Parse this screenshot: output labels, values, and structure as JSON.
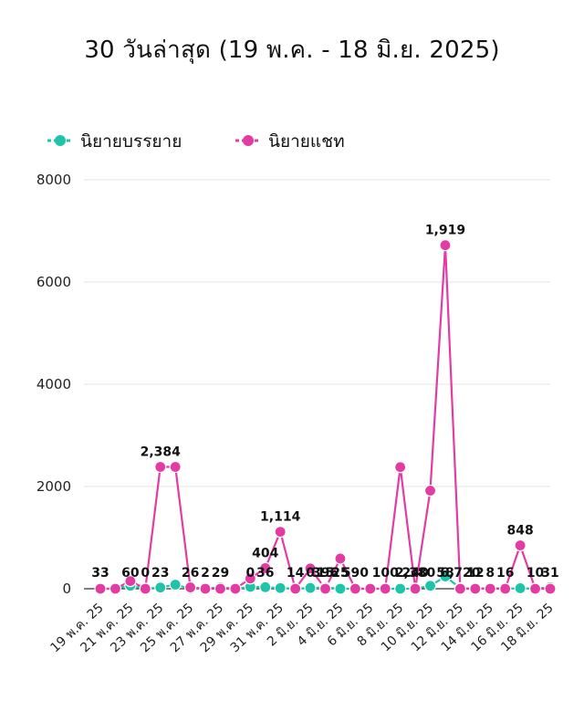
{
  "chart_data": {
    "type": "line",
    "title": "30 วันล่าสุด (19 พ.ค. - 18 มิ.ย. 2025)",
    "ylim": [
      0,
      8000
    ],
    "yticks": [
      0,
      2000,
      4000,
      6000,
      8000
    ],
    "grid": true,
    "legend_position": "top-left",
    "x": [
      "19 พ.ค. 25",
      "20 พ.ค. 25",
      "21 พ.ค. 25",
      "22 พ.ค. 25",
      "23 พ.ค. 25",
      "24 พ.ค. 25",
      "25 พ.ค. 25",
      "26 พ.ค. 25",
      "27 พ.ค. 25",
      "28 พ.ค. 25",
      "29 พ.ค. 25",
      "30 พ.ค. 25",
      "31 พ.ค. 25",
      "1 มิ.ย. 25",
      "2 มิ.ย. 25",
      "3 มิ.ย. 25",
      "4 มิ.ย. 25",
      "5 มิ.ย. 25",
      "6 มิ.ย. 25",
      "7 มิ.ย. 25",
      "8 มิ.ย. 25",
      "9 มิ.ย. 25",
      "10 มิ.ย. 25",
      "11 มิ.ย. 25",
      "12 มิ.ย. 25",
      "13 มิ.ย. 25",
      "14 มิ.ย. 25",
      "15 มิ.ย. 25",
      "16 มิ.ย. 25",
      "17 มิ.ย. 25",
      "18 มิ.ย. 25"
    ],
    "x_tick_labels": [
      "19 พ.ค. 25",
      "21 พ.ค. 25",
      "23 พ.ค. 25",
      "25 พ.ค. 25",
      "27 พ.ค. 25",
      "29 พ.ค. 25",
      "31 พ.ค. 25",
      "2 มิ.ย. 25",
      "4 มิ.ย. 25",
      "6 มิ.ย. 25",
      "8 มิ.ย. 25",
      "10 มิ.ย. 25",
      "12 มิ.ย. 25",
      "14 มิ.ย. 25",
      "16 มิ.ย. 25",
      "18 มิ.ย. 25"
    ],
    "series": [
      {
        "name": "นิยายบรรยาย",
        "color": "#1ec4a8",
        "values": [
          0,
          0,
          60,
          0,
          23,
          80,
          0,
          0,
          29,
          0,
          36,
          30,
          14,
          0,
          15,
          25,
          0,
          0,
          0,
          0,
          0,
          0,
          58,
          240,
          12,
          0,
          16,
          0,
          10,
          0,
          31
        ]
      },
      {
        "name": "นิยายแชท",
        "color": "#e23ca4",
        "values": [
          0,
          0,
          150,
          0,
          2384,
          2384,
          26,
          0,
          0,
          0,
          200,
          404,
          1114,
          0,
          396,
          0,
          590,
          0,
          0,
          0,
          2380,
          0,
          1919,
          6720,
          0,
          0,
          0,
          0,
          848,
          0,
          0
        ]
      }
    ],
    "data_labels": [
      {
        "i": 0,
        "text": "33"
      },
      {
        "i": 2,
        "text": "60"
      },
      {
        "i": 3,
        "text": "0"
      },
      {
        "i": 4,
        "text": "23"
      },
      {
        "i": 4,
        "text": "2,384"
      },
      {
        "i": 6,
        "text": "26"
      },
      {
        "i": 7,
        "text": "2"
      },
      {
        "i": 8,
        "text": "29"
      },
      {
        "i": 10,
        "text": "0"
      },
      {
        "i": 11,
        "text": "36"
      },
      {
        "i": 11,
        "text": "404"
      },
      {
        "i": 12,
        "text": "1,114"
      },
      {
        "i": 13,
        "text": "14"
      },
      {
        "i": 14,
        "text": "0"
      },
      {
        "i": 15,
        "text": "15"
      },
      {
        "i": 15,
        "text": "396"
      },
      {
        "i": 16,
        "text": "25"
      },
      {
        "i": 17,
        "text": "590"
      },
      {
        "i": 19,
        "text": "100"
      },
      {
        "i": 21,
        "text": "240"
      },
      {
        "i": 21,
        "text": "2,380"
      },
      {
        "i": 23,
        "text": "58"
      },
      {
        "i": 23,
        "text": "1,919"
      },
      {
        "i": 24,
        "text": "6,720"
      },
      {
        "i": 25,
        "text": "12"
      },
      {
        "i": 26,
        "text": "8"
      },
      {
        "i": 27,
        "text": "16"
      },
      {
        "i": 28,
        "text": "848"
      },
      {
        "i": 29,
        "text": "10"
      },
      {
        "i": 30,
        "text": "31"
      }
    ]
  }
}
